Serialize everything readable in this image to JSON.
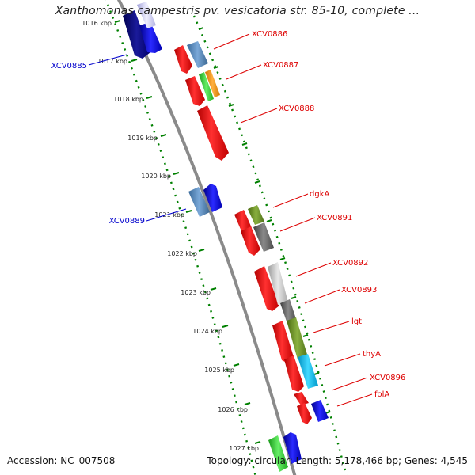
{
  "title": "Xanthomonas campestris pv. vesicatoria str. 85-10, complete ...",
  "ticks": [
    {
      "label": "1016 kbp"
    },
    {
      "label": "1017 kbp"
    },
    {
      "label": "1018 kbp"
    },
    {
      "label": "1019 kbp"
    },
    {
      "label": "1020 kbp"
    },
    {
      "label": "1021 kbp"
    },
    {
      "label": "1022 kbp"
    },
    {
      "label": "1023 kbp"
    },
    {
      "label": "1024 kbp"
    },
    {
      "label": "1025 kbp"
    },
    {
      "label": "1026 kbp"
    },
    {
      "label": "1027 kbp"
    }
  ],
  "genes_forward": [
    {
      "name": "XCV0886",
      "color": "#ff0000"
    },
    {
      "name": "XCV0887",
      "color": "#ff0000"
    },
    {
      "name": "XCV0888",
      "color": "#ff0000"
    },
    {
      "name": "dgkA",
      "color": "#ff0000"
    },
    {
      "name": "XCV0891",
      "color": "#ff0000"
    },
    {
      "name": "XCV0892",
      "color": "#ff0000"
    },
    {
      "name": "XCV0893",
      "color": "#ff0000"
    },
    {
      "name": "lgt",
      "color": "#ff0000"
    },
    {
      "name": "thyA",
      "color": "#ff0000"
    },
    {
      "name": "XCV0896",
      "color": "#ff0000"
    },
    {
      "name": "folA",
      "color": "#ff0000"
    }
  ],
  "genes_reverse": [
    {
      "name": "XCV0885",
      "color": "#0000cc"
    },
    {
      "name": "XCV0889",
      "color": "#0000cc"
    }
  ],
  "colors": {
    "backbone": "#8a8a8a",
    "tick": "#008000",
    "forward_label": "#dd0000",
    "reverse_label": "#0000cc"
  },
  "footer": {
    "accession": "Accession: NC_007508",
    "summary": "Topology: circular; Length: 5,178,466 bp; Genes: 4,545"
  }
}
